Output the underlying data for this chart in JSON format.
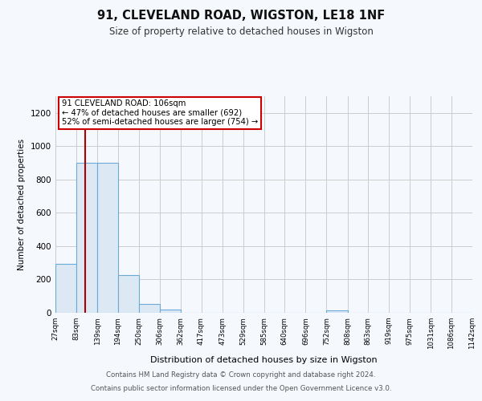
{
  "title_line1": "91, CLEVELAND ROAD, WIGSTON, LE18 1NF",
  "title_line2": "Size of property relative to detached houses in Wigston",
  "xlabel": "Distribution of detached houses by size in Wigston",
  "ylabel": "Number of detached properties",
  "bar_edges": [
    27,
    83,
    139,
    194,
    250,
    306,
    362,
    417,
    473,
    529,
    585,
    640,
    696,
    752,
    808,
    863,
    919,
    975,
    1031,
    1086,
    1142
  ],
  "bar_heights": [
    295,
    900,
    900,
    225,
    55,
    20,
    0,
    0,
    0,
    0,
    0,
    0,
    0,
    15,
    0,
    0,
    0,
    0,
    0,
    0
  ],
  "bar_color": "#dce9f5",
  "bar_edge_color": "#6aaad4",
  "ylim": [
    0,
    1300
  ],
  "yticks": [
    0,
    200,
    400,
    600,
    800,
    1000,
    1200
  ],
  "property_size": 106,
  "property_line_color": "#aa0000",
  "annotation_text": "91 CLEVELAND ROAD: 106sqm\n← 47% of detached houses are smaller (692)\n52% of semi-detached houses are larger (754) →",
  "annotation_box_color": "#ffffff",
  "annotation_box_edge": "#cc0000",
  "footer_line1": "Contains HM Land Registry data © Crown copyright and database right 2024.",
  "footer_line2": "Contains public sector information licensed under the Open Government Licence v3.0.",
  "background_color": "#f5f8fd",
  "grid_color": "#cccccc"
}
